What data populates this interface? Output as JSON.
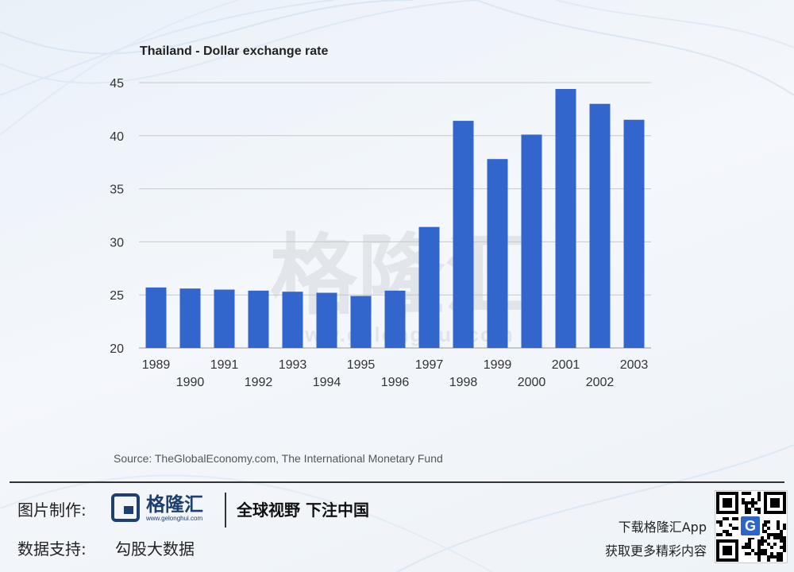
{
  "chart_data": {
    "type": "bar",
    "title": "Thailand - Dollar exchange rate",
    "categories": [
      "1989",
      "1990",
      "1991",
      "1992",
      "1993",
      "1994",
      "1995",
      "1996",
      "1997",
      "1998",
      "1999",
      "2000",
      "2001",
      "2002",
      "2003"
    ],
    "values": [
      25.7,
      25.6,
      25.5,
      25.4,
      25.3,
      25.2,
      24.9,
      25.4,
      31.4,
      41.4,
      37.8,
      40.1,
      44.4,
      43.0,
      41.5
    ],
    "ylim": [
      20,
      45
    ],
    "yticks": [
      20,
      25,
      30,
      35,
      40,
      45
    ],
    "grid": true,
    "bar_color": "#3366cc"
  },
  "source": "Source: TheGlobalEconomy.com, The International Monetary Fund",
  "watermark": {
    "brand": "格隆汇",
    "url": "www.gelonghui.com"
  },
  "footer": {
    "made_by_label": "图片制作:",
    "logo_name": "格隆汇",
    "logo_url": "www.gelonghui.com",
    "slogan": "全球视野 下注中国",
    "data_support_label": "数据支持:",
    "data_support_value": "勾股大数据",
    "app_line1": "下载格隆汇App",
    "app_line2": "获取更多精彩内容",
    "qr_badge": "G"
  }
}
